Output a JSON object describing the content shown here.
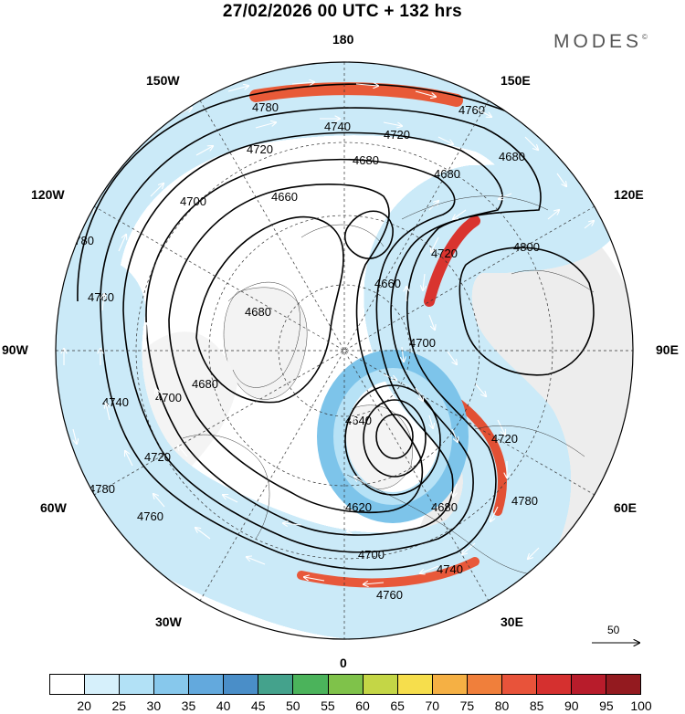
{
  "title": "27/02/2026  00 UTC  + 132 hrs",
  "brand": "MODES",
  "brand_mark": "©",
  "longitude_labels": [
    {
      "text": "180",
      "pos": "top"
    },
    {
      "text": "150E",
      "pos": "top-right"
    },
    {
      "text": "120E",
      "pos": "right-upper"
    },
    {
      "text": "90E",
      "pos": "right"
    },
    {
      "text": "60E",
      "pos": "right-lower"
    },
    {
      "text": "30E",
      "pos": "bottom-right"
    },
    {
      "text": "0",
      "pos": "bottom"
    },
    {
      "text": "30W",
      "pos": "bottom-left"
    },
    {
      "text": "60W",
      "pos": "left-lower"
    },
    {
      "text": "90W",
      "pos": "left"
    },
    {
      "text": "120W",
      "pos": "left-upper"
    },
    {
      "text": "150W",
      "pos": "top-left"
    }
  ],
  "contour_labels": [
    "4780",
    "4760",
    "4740",
    "4720",
    "4700",
    "4680",
    "4660",
    "4640",
    "4620",
    "4800"
  ],
  "vector_reference": "50",
  "colorbar": {
    "ticks": [
      "20",
      "25",
      "30",
      "35",
      "40",
      "45",
      "50",
      "55",
      "60",
      "65",
      "70",
      "75",
      "80",
      "85",
      "90",
      "95",
      "100"
    ],
    "colors": [
      "#ffffff",
      "#d6f0fb",
      "#b2e1f6",
      "#87c8ec",
      "#63a9dd",
      "#4a8ec8",
      "#44a28c",
      "#4bb35b",
      "#7fc24a",
      "#c4d646",
      "#f6de4c",
      "#f5b044",
      "#f07f3b",
      "#e8533a",
      "#d5302f",
      "#b81c2b",
      "#931a1f"
    ]
  },
  "chart_data": {
    "type": "map",
    "projection": "polar-stereographic (north pole)",
    "field": "wind speed shaded with 500 hPa geopotential height contours and wind vectors",
    "valid_time": "27/02/2026 00 UTC",
    "forecast_hour": 132,
    "shading_levels": [
      20,
      25,
      30,
      35,
      40,
      45,
      50,
      55,
      60,
      65,
      70,
      75,
      80,
      85,
      90,
      95,
      100
    ],
    "contour_levels": [
      4620,
      4640,
      4660,
      4680,
      4700,
      4720,
      4740,
      4760,
      4780,
      4800
    ],
    "reference_vector": 50
  }
}
